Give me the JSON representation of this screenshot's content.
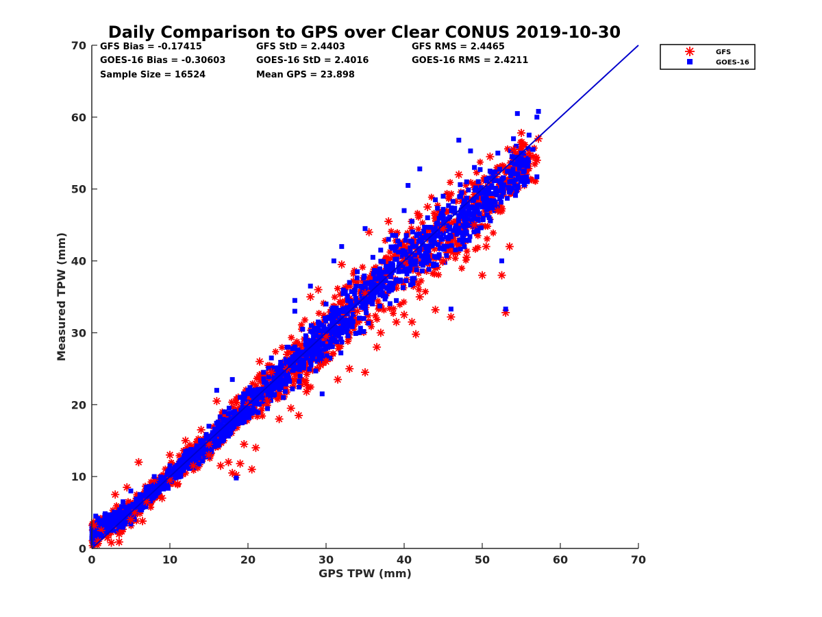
{
  "chart_data": {
    "type": "scatter",
    "title": "Daily Comparison to GPS over Clear CONUS 2019-10-30",
    "xlabel": "GPS TPW (mm)",
    "ylabel": "Measured TPW (mm)",
    "xlim": [
      0,
      70
    ],
    "ylim": [
      0,
      70
    ],
    "xticks": [
      "0",
      "10",
      "20",
      "30",
      "40",
      "50",
      "60",
      "70"
    ],
    "yticks": [
      "0",
      "10",
      "20",
      "30",
      "40",
      "50",
      "60",
      "70"
    ],
    "legend_position": "top-right outside",
    "stats": [
      "GFS Bias = -0.17415",
      "GFS StD = 2.4403",
      "GFS RMS = 2.4465",
      "GOES-16 Bias = -0.30603",
      "GOES-16 StD = 2.4016",
      "GOES-16 RMS = 2.4211",
      "Sample Size = 16524",
      "Mean GPS = 23.898"
    ],
    "one_to_one_line": {
      "x": [
        0,
        70
      ],
      "y": [
        0,
        70
      ],
      "color": "#0000cc"
    },
    "series": [
      {
        "name": "GFS",
        "marker": "asterisk",
        "color": "#ff0000",
        "points": [
          [
            0.3,
            3.2
          ],
          [
            0.8,
            1.0
          ],
          [
            1.2,
            2.5
          ],
          [
            2.0,
            1.5
          ],
          [
            3.0,
            7.5
          ],
          [
            3.5,
            2.0
          ],
          [
            4.5,
            8.5
          ],
          [
            5.0,
            4.0
          ],
          [
            6.0,
            12.0
          ],
          [
            7.0,
            6.5
          ],
          [
            8.0,
            9.5
          ],
          [
            9.0,
            7.0
          ],
          [
            10.0,
            13.0
          ],
          [
            11.0,
            9.0
          ],
          [
            12.0,
            15.0
          ],
          [
            13.0,
            11.5
          ],
          [
            14.0,
            16.5
          ],
          [
            15.0,
            13.0
          ],
          [
            16.0,
            20.5
          ],
          [
            16.5,
            11.5
          ],
          [
            17.5,
            12.0
          ],
          [
            18.0,
            10.5
          ],
          [
            18.5,
            10.2
          ],
          [
            19.0,
            11.8
          ],
          [
            19.5,
            14.5
          ],
          [
            20.5,
            11.0
          ],
          [
            21.0,
            14.0
          ],
          [
            21.5,
            26.0
          ],
          [
            22.5,
            20.5
          ],
          [
            23.0,
            24.5
          ],
          [
            24.0,
            18.0
          ],
          [
            25.0,
            27.0
          ],
          [
            25.5,
            19.5
          ],
          [
            26.5,
            18.5
          ],
          [
            27.5,
            21.8
          ],
          [
            28.0,
            35.0
          ],
          [
            29.0,
            36.0
          ],
          [
            29.3,
            25.5
          ],
          [
            30.0,
            26.0
          ],
          [
            31.5,
            23.5
          ],
          [
            32.0,
            39.5
          ],
          [
            33.0,
            25.0
          ],
          [
            34.0,
            33.0
          ],
          [
            35.0,
            24.5
          ],
          [
            35.5,
            44.0
          ],
          [
            36.5,
            28.0
          ],
          [
            37.0,
            30.0
          ],
          [
            38.0,
            45.5
          ],
          [
            39.0,
            31.5
          ],
          [
            40.0,
            32.5
          ],
          [
            41.0,
            31.5
          ],
          [
            41.5,
            29.8
          ],
          [
            42.0,
            35.0
          ],
          [
            43.0,
            47.5
          ],
          [
            44.0,
            33.2
          ],
          [
            45.0,
            40.0
          ],
          [
            46.0,
            32.2
          ],
          [
            47.0,
            52.0
          ],
          [
            48.0,
            40.5
          ],
          [
            49.0,
            45.0
          ],
          [
            50.0,
            38.0
          ],
          [
            50.5,
            42.0
          ],
          [
            51.0,
            54.5
          ],
          [
            52.0,
            47.0
          ],
          [
            52.5,
            38.0
          ],
          [
            53.0,
            32.8
          ],
          [
            53.5,
            42.0
          ],
          [
            54.0,
            55.5
          ],
          [
            55.0,
            57.8
          ],
          [
            56.0,
            55.0
          ],
          [
            56.5,
            54.5
          ],
          [
            57.0,
            54.0
          ],
          [
            57.2,
            57.0
          ],
          [
            10.0,
            9.5
          ],
          [
            15.0,
            14.5
          ],
          [
            20.0,
            20.0
          ],
          [
            25.0,
            25.0
          ],
          [
            30.0,
            29.5
          ],
          [
            35.0,
            35.5
          ],
          [
            40.0,
            40.0
          ],
          [
            45.0,
            44.5
          ],
          [
            2.5,
            0.8
          ],
          [
            5.5,
            5.0
          ],
          [
            6.5,
            3.8
          ],
          [
            3.5,
            0.9
          ]
        ]
      },
      {
        "name": "GOES-16",
        "marker": "square",
        "color": "#0000ff",
        "points": [
          [
            0.5,
            4.5
          ],
          [
            1.0,
            2.0
          ],
          [
            1.5,
            3.5
          ],
          [
            2.0,
            4.5
          ],
          [
            2.5,
            2.5
          ],
          [
            3.0,
            5.0
          ],
          [
            3.5,
            3.0
          ],
          [
            4.0,
            6.5
          ],
          [
            4.5,
            5.0
          ],
          [
            5.0,
            8.0
          ],
          [
            6.0,
            6.5
          ],
          [
            7.0,
            8.5
          ],
          [
            8.0,
            10.0
          ],
          [
            9.0,
            9.0
          ],
          [
            10.0,
            11.5
          ],
          [
            11.0,
            11.0
          ],
          [
            12.0,
            13.5
          ],
          [
            13.0,
            12.5
          ],
          [
            14.0,
            15.0
          ],
          [
            15.0,
            17.0
          ],
          [
            16.0,
            22.0
          ],
          [
            17.0,
            19.0
          ],
          [
            18.0,
            23.5
          ],
          [
            18.5,
            9.8
          ],
          [
            19.0,
            21.0
          ],
          [
            20.0,
            22.0
          ],
          [
            21.0,
            20.5
          ],
          [
            22.0,
            24.5
          ],
          [
            23.0,
            26.5
          ],
          [
            24.0,
            25.0
          ],
          [
            25.0,
            28.0
          ],
          [
            26.0,
            34.5
          ],
          [
            27.0,
            30.5
          ],
          [
            28.0,
            36.5
          ],
          [
            29.0,
            31.5
          ],
          [
            29.5,
            21.5
          ],
          [
            30.0,
            34.0
          ],
          [
            31.0,
            40.0
          ],
          [
            32.0,
            42.0
          ],
          [
            33.0,
            37.0
          ],
          [
            34.0,
            38.5
          ],
          [
            35.0,
            44.5
          ],
          [
            36.0,
            40.5
          ],
          [
            37.0,
            41.5
          ],
          [
            38.0,
            43.0
          ],
          [
            39.0,
            42.0
          ],
          [
            40.0,
            47.0
          ],
          [
            40.5,
            50.5
          ],
          [
            41.0,
            45.5
          ],
          [
            42.0,
            52.8
          ],
          [
            43.0,
            46.0
          ],
          [
            44.0,
            48.5
          ],
          [
            45.0,
            49.0
          ],
          [
            46.0,
            33.3
          ],
          [
            47.0,
            56.8
          ],
          [
            48.0,
            51.0
          ],
          [
            48.5,
            55.3
          ],
          [
            49.0,
            53.0
          ],
          [
            50.0,
            47.5
          ],
          [
            51.0,
            52.5
          ],
          [
            52.0,
            55.0
          ],
          [
            52.5,
            40.0
          ],
          [
            53.0,
            33.3
          ],
          [
            53.5,
            51.0
          ],
          [
            54.0,
            57.0
          ],
          [
            54.5,
            60.5
          ],
          [
            55.0,
            55.0
          ],
          [
            55.5,
            54.0
          ],
          [
            56.0,
            57.5
          ],
          [
            56.5,
            55.5
          ],
          [
            57.0,
            60.0
          ],
          [
            57.2,
            60.8
          ],
          [
            57.0,
            51.7
          ],
          [
            26.0,
            33.0
          ],
          [
            32.0,
            30.0
          ],
          [
            38.0,
            38.5
          ],
          [
            44.0,
            44.5
          ],
          [
            20.0,
            19.5
          ],
          [
            10.0,
            10.5
          ],
          [
            30.0,
            30.5
          ]
        ]
      }
    ],
    "cloud": {
      "note": "dense scatter clusters along the 1:1 line",
      "centerline": [
        [
          0,
          2
        ],
        [
          5,
          5
        ],
        [
          10,
          10
        ],
        [
          15,
          14.5
        ],
        [
          20,
          20
        ],
        [
          25,
          24.5
        ],
        [
          30,
          29.5
        ],
        [
          35,
          35
        ],
        [
          40,
          40
        ],
        [
          45,
          44
        ],
        [
          50,
          48
        ],
        [
          55,
          53
        ]
      ],
      "spread": [
        [
          0,
          1.8
        ],
        [
          10,
          1.5
        ],
        [
          20,
          2.5
        ],
        [
          30,
          4
        ],
        [
          40,
          5
        ],
        [
          50,
          5
        ],
        [
          55,
          3.5
        ]
      ]
    }
  }
}
